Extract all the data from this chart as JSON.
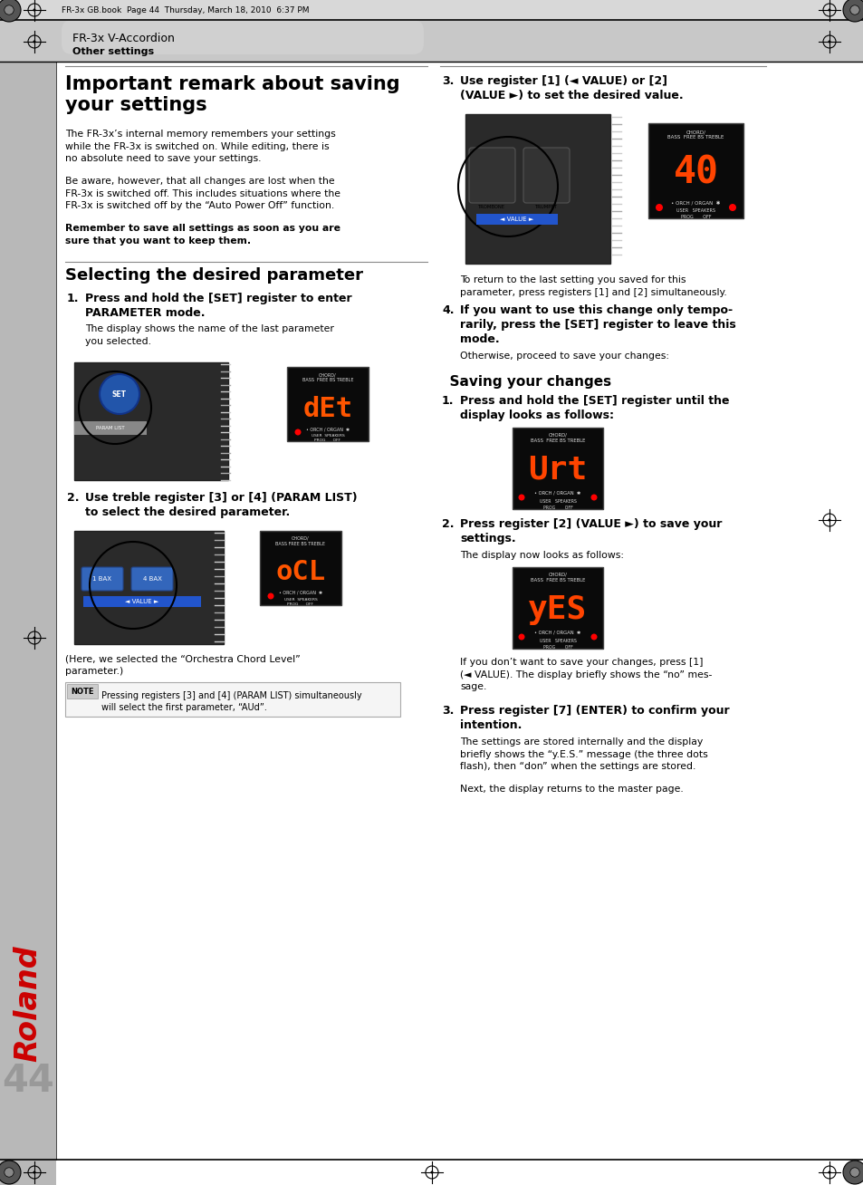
{
  "page_bg": "#ffffff",
  "header_bg": "#c8c8c8",
  "sidebar_bg": "#b8b8b8",
  "header_text_main": "FR-3x V-Accordion",
  "header_text_sub": "Other settings",
  "header_file": "FR-3x GB.book  Page 44  Thursday, March 18, 2010  6:37 PM",
  "page_number": "44",
  "title1": "Important remark about saving\nyour settings",
  "body1_p1": "The FR-3x’s internal memory remembers your settings\nwhile the FR-3x is switched on. While editing, there is\nno absolute need to save your settings.",
  "body1_p2": "Be aware, however, that all changes are lost when the\nFR-3x is switched off. This includes situations where the\nFR-3x is switched off by the “Auto Power Off” function.",
  "body1_bold": "Remember to save all settings as soon as you are\nsure that you want to keep them.",
  "title2": "Selecting the desired parameter",
  "step1_bold": "Press and hold the [SET] register to enter\nPARAMETER mode.",
  "step1_body": "The display shows the name of the last parameter\nyou selected.",
  "step2_bold": "Use treble register [3] or [4] (PARAM LIST)\nto select the desired parameter.",
  "step3_bold": "Use register [1] (◄ VALUE) or [2]\n(VALUE ►) to set the desired value.",
  "step3_body": "To return to the last setting you saved for this\nparameter, press registers [1] and [2] simultaneously.",
  "step4_bold": "If you want to use this change only tempo-\nrarily, press the [SET] register to leave this\nmode.",
  "step4_body": "Otherwise, proceed to save your changes:",
  "title3": "  Saving your changes",
  "save1_bold": "Press and hold the [SET] register until the\ndisplay looks as follows:",
  "save2_bold": "Press register [2] (VALUE ►) to save your\nsettings.",
  "save2_body": "The display now looks as follows:",
  "save2_note": "If you don’t want to save your changes, press [1]\n(◄ VALUE). The display briefly shows the “no” mes-\nsage.",
  "save3_bold": "Press register [7] (ENTER) to confirm your\nintention.",
  "save3_body1": "The settings are stored internally and the display\nbriefly shows the “y.E.S.” message (the three dots\nflash), then “don” when the settings are stored.",
  "save3_body2": "Next, the display returns to the master page.",
  "note_text": "Pressing registers [3] and [4] (PARAM LIST) simultaneously\nwill select the first parameter, “AUd”.",
  "caption_ocl": "(Here, we selected the “Orchestra Chord Level”\nparameter.)",
  "display_det": "dEt",
  "display_ocl": "oCL",
  "display_40": "40",
  "display_urt": "Urt",
  "display_yes": "yES"
}
